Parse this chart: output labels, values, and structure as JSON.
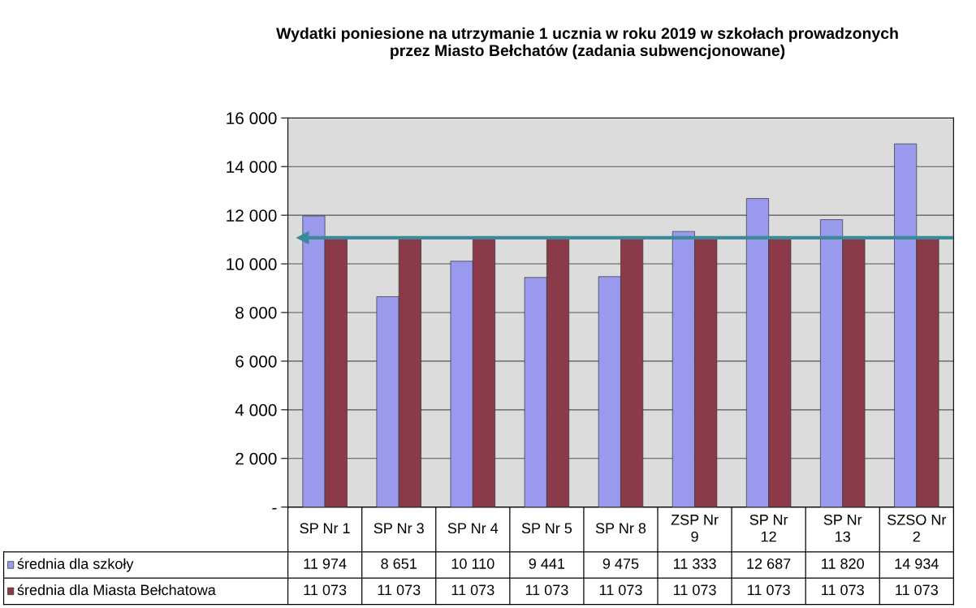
{
  "chart_data": {
    "type": "bar",
    "title": "Wydatki poniesione na utrzymanie 1 ucznia w roku 2019 w szkołach prowadzonych\nprzez Miasto Bełchatów (zadania subwencjonowane)",
    "categories": [
      "SP Nr 1",
      "SP Nr 3",
      "SP Nr 4",
      "SP Nr 5",
      "SP Nr 8",
      "ZSP Nr 9",
      "SP Nr 12",
      "SP Nr 13",
      "SZSO Nr 2"
    ],
    "series": [
      {
        "name": "średnia dla szkoły",
        "color": "#9999ee",
        "values": [
          11974,
          8651,
          10110,
          9441,
          9475,
          11333,
          12687,
          11820,
          14934
        ],
        "value_labels": [
          "11 974",
          "8 651",
          "10 110",
          "9 441",
          "9 475",
          "11 333",
          "12 687",
          "11 820",
          "14 934"
        ]
      },
      {
        "name": "średnia dla Miasta Bełchatowa",
        "color": "#8b3a4a",
        "values": [
          11073,
          11073,
          11073,
          11073,
          11073,
          11073,
          11073,
          11073,
          11073
        ],
        "value_labels": [
          "11 073",
          "11 073",
          "11 073",
          "11 073",
          "11 073",
          "11 073",
          "11 073",
          "11 073",
          "11 073"
        ]
      }
    ],
    "ylim": [
      0,
      16000
    ],
    "yticks": [
      {
        "value": 0,
        "label": "-"
      },
      {
        "value": 2000,
        "label": "2 000"
      },
      {
        "value": 4000,
        "label": "4 000"
      },
      {
        "value": 6000,
        "label": "6 000"
      },
      {
        "value": 8000,
        "label": "8 000"
      },
      {
        "value": 10000,
        "label": "10 000"
      },
      {
        "value": 12000,
        "label": "12 000"
      },
      {
        "value": 14000,
        "label": "14 000"
      },
      {
        "value": 16000,
        "label": "16 000"
      }
    ],
    "grid": "y",
    "legend": "bottom left",
    "ref_lines": [
      {
        "axis": "y",
        "value": 11073,
        "color": "#3a8a9a"
      }
    ]
  }
}
